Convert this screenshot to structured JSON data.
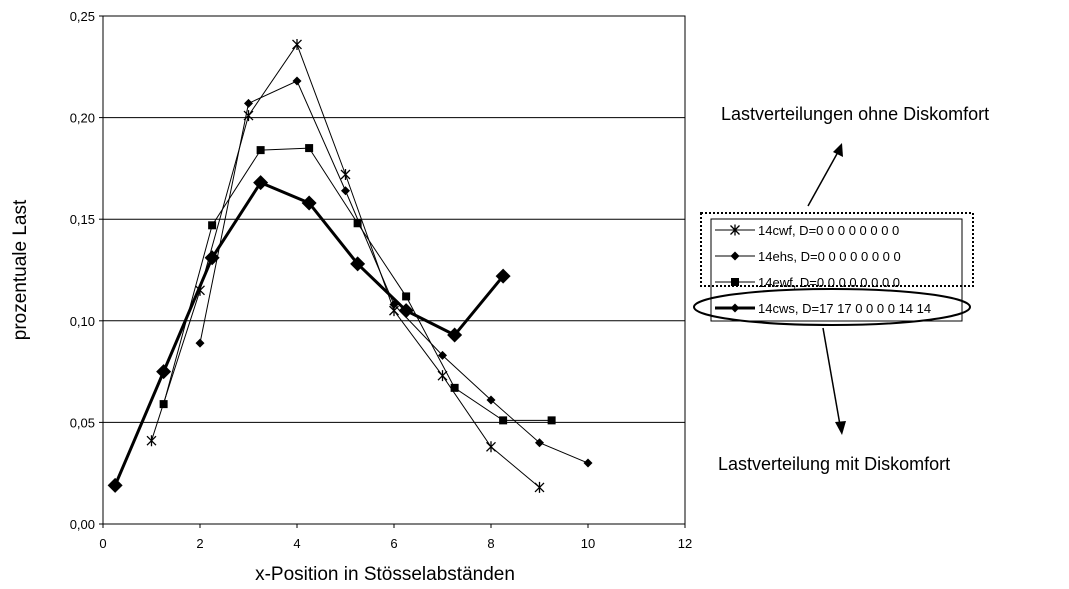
{
  "chart_data": {
    "type": "line",
    "title": "",
    "xlabel": "x-Position in Stösselabständen",
    "ylabel": "prozentuale Last",
    "xlim": [
      0,
      12
    ],
    "ylim": [
      0,
      0.25
    ],
    "x_ticks": [
      "0",
      "2",
      "4",
      "6",
      "8",
      "10",
      "12"
    ],
    "y_ticks": [
      "0,00",
      "0,05",
      "0,10",
      "0,15",
      "0,20",
      "0,25"
    ],
    "grid": "horizontal",
    "legend_position": "right",
    "series": [
      {
        "name": "14cwf, D=0 0 0 0 0 0 0 0",
        "marker": "asterisk",
        "x": [
          1,
          2,
          3,
          4,
          5,
          6,
          7,
          8,
          9
        ],
        "y": [
          0.041,
          0.115,
          0.201,
          0.236,
          0.172,
          0.105,
          0.073,
          0.038,
          0.018
        ]
      },
      {
        "name": "14ehs, D=0 0 0 0 0 0 0 0",
        "marker": "diamond",
        "x": [
          2,
          3,
          4,
          5,
          6,
          7,
          8,
          9,
          10
        ],
        "y": [
          0.089,
          0.207,
          0.218,
          0.164,
          0.108,
          0.083,
          0.061,
          0.04,
          0.03
        ]
      },
      {
        "name": "14ewf, D=0 0 0 0 0 0 0 0",
        "marker": "square",
        "x": [
          1.25,
          2.25,
          3.25,
          4.25,
          5.25,
          6.25,
          7.25,
          8.25,
          9.25
        ],
        "y": [
          0.059,
          0.147,
          0.184,
          0.185,
          0.148,
          0.112,
          0.067,
          0.051,
          0.051
        ]
      },
      {
        "name": "14cws, D=17 17 0 0 0 0 14 14",
        "marker": "diamond-large",
        "bold": true,
        "x": [
          0.25,
          1.25,
          2.25,
          3.25,
          4.25,
          5.25,
          6.25,
          7.25,
          8.25
        ],
        "y": [
          0.019,
          0.075,
          0.131,
          0.168,
          0.158,
          0.128,
          0.105,
          0.093,
          0.122
        ]
      }
    ]
  },
  "annotations": {
    "top": "Lastverteilungen ohne Diskomfort",
    "bottom": "Lastverteilung mit Diskomfort"
  }
}
